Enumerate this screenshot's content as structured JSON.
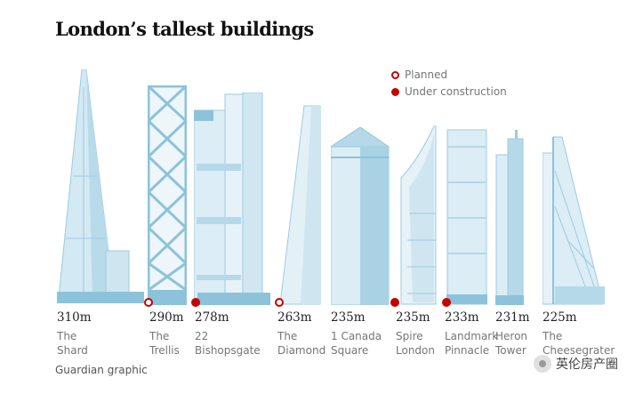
{
  "title": "London’s tallest buildings",
  "legend": {
    "planned": "Planned",
    "under_construction": "Under construction"
  },
  "colors": {
    "accent_red": "#c70000",
    "building_light": "#dcedf5",
    "building_mid": "#b5d9e8",
    "building_dark": "#8cc3da"
  },
  "buildings": [
    {
      "height": "310m",
      "name_1": "The",
      "name_2": "Shard",
      "status": "existing"
    },
    {
      "height": "290m",
      "name_1": "The",
      "name_2": "Trellis",
      "status": "planned"
    },
    {
      "height": "278m",
      "name_1": "22",
      "name_2": "Bishopsgate",
      "status": "under construction"
    },
    {
      "height": "263m",
      "name_1": "The",
      "name_2": "Diamond",
      "status": "planned"
    },
    {
      "height": "235m",
      "name_1": "1 Canada",
      "name_2": "Square",
      "status": "existing"
    },
    {
      "height": "235m",
      "name_1": "Spire",
      "name_2": "London",
      "status": "under construction"
    },
    {
      "height": "233m",
      "name_1": "Landmark",
      "name_2": "Pinnacle",
      "status": "under construction"
    },
    {
      "height": "231m",
      "name_1": "Heron",
      "name_2": "Tower",
      "status": "existing"
    },
    {
      "height": "225m",
      "name_1": "The",
      "name_2": "Cheesegrater",
      "status": "existing"
    }
  ],
  "credit": "Guardian graphic",
  "watermark": "英伦房产圈"
}
